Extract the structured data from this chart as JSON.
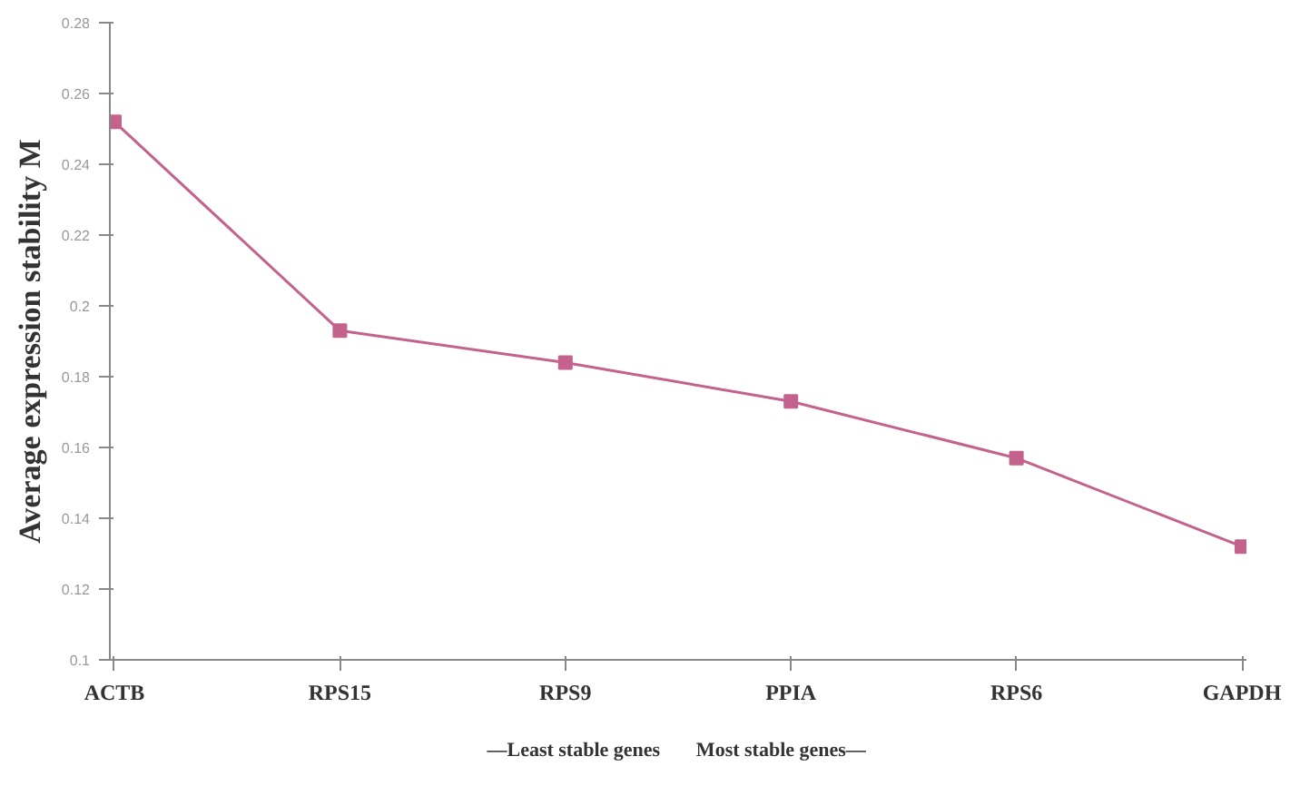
{
  "chart_data": {
    "type": "line",
    "ylabel": "Average expression stability M",
    "categories": [
      "ACTB",
      "RPS15",
      "RPS9",
      "PPIA",
      "RPS6",
      "GAPDH"
    ],
    "series": [
      {
        "color": "#c4628e",
        "values": [
          0.252,
          0.193,
          0.184,
          0.173,
          0.157,
          0.132
        ]
      }
    ],
    "ylim": [
      0.1,
      0.28
    ],
    "yticks": [
      0.1,
      0.12,
      0.14,
      0.16,
      0.18,
      0.2,
      0.22,
      0.24,
      0.26,
      0.28
    ],
    "marker": "square",
    "grid": false,
    "annotations": [
      "—Least stable genes",
      "Most stable genes—"
    ]
  }
}
